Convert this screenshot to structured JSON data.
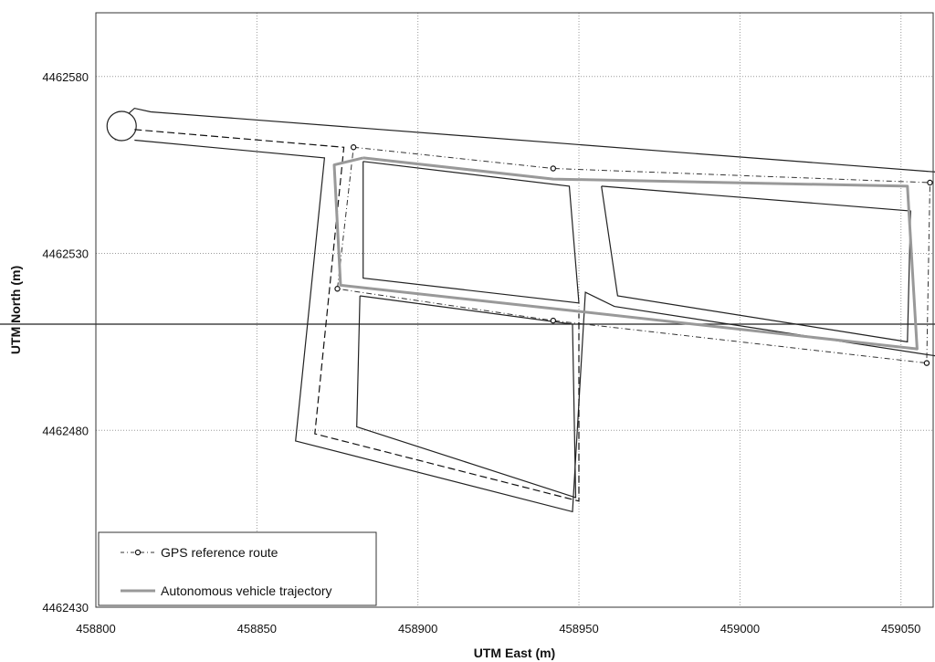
{
  "chart_data": {
    "type": "line",
    "title": "",
    "xlabel": "UTM East (m)",
    "ylabel": "UTM North (m)",
    "xlim": [
      458800,
      459060
    ],
    "ylim": [
      4462430,
      4462598
    ],
    "xticks": [
      458800,
      458850,
      458900,
      458950,
      459000,
      459050
    ],
    "yticks": [
      4462430,
      4462480,
      4462530,
      4462580
    ],
    "grid": "dotted",
    "legend_position": "bottom-left",
    "colors": {
      "road": "#222222",
      "gps": "#333333",
      "trajectory": "#999999",
      "grid": "#9a9a9a"
    },
    "road_outlines": [
      [
        [
          458806,
          4462562
        ],
        [
          458807,
          4462567
        ],
        [
          458812,
          4462571
        ],
        [
          458817,
          4462570
        ],
        [
          459061,
          4462553
        ],
        [
          459061,
          4462510
        ],
        [
          458654,
          4462510
        ]
      ],
      [
        [
          458812,
          4462562
        ],
        [
          458871,
          4462557
        ],
        [
          458862,
          4462477
        ],
        [
          458948,
          4462457
        ],
        [
          458952,
          4462519
        ],
        [
          458961,
          4462515
        ],
        [
          459061,
          4462501
        ]
      ],
      [
        [
          458883,
          4462556
        ],
        [
          458947,
          4462549
        ],
        [
          458950,
          4462516
        ],
        [
          458883,
          4462523
        ],
        [
          458883,
          4462556
        ]
      ],
      [
        [
          458957,
          4462549
        ],
        [
          459053,
          4462542
        ],
        [
          459052,
          4462505
        ],
        [
          458962,
          4462518
        ],
        [
          458957,
          4462549
        ]
      ],
      [
        [
          458882,
          4462518
        ],
        [
          458881,
          4462481
        ],
        [
          458949,
          4462461
        ],
        [
          458948,
          4462510
        ],
        [
          458882,
          4462518
        ]
      ]
    ],
    "series": [
      {
        "name": "GPS reference route",
        "style": "dash-dot-markers",
        "points": [
          [
            458880,
            4462560
          ],
          [
            458942,
            4462554
          ],
          [
            459059,
            4462550
          ],
          [
            459058,
            4462499
          ],
          [
            458942,
            4462511
          ],
          [
            458875,
            4462520
          ],
          [
            458880,
            4462560
          ]
        ],
        "markers": [
          [
            458880,
            4462560
          ],
          [
            458942,
            4462554
          ],
          [
            459059,
            4462550
          ],
          [
            459058,
            4462499
          ],
          [
            458942,
            4462511
          ],
          [
            458875,
            4462520
          ]
        ]
      },
      {
        "name": "Autonomous vehicle trajectory",
        "style": "solid-gray",
        "points": [
          [
            458883,
            4462557
          ],
          [
            458942,
            4462551
          ],
          [
            459052,
            4462549
          ],
          [
            459055,
            4462503
          ],
          [
            458946,
            4462514
          ],
          [
            458876,
            4462521
          ],
          [
            458874,
            4462555
          ],
          [
            458883,
            4462557
          ]
        ]
      }
    ],
    "dashed_center_path": [
      [
        458812,
        4462565
      ],
      [
        458877,
        4462560
      ],
      [
        458868,
        4462479
      ],
      [
        458950,
        4462460
      ],
      [
        458950,
        4462513
      ]
    ]
  }
}
